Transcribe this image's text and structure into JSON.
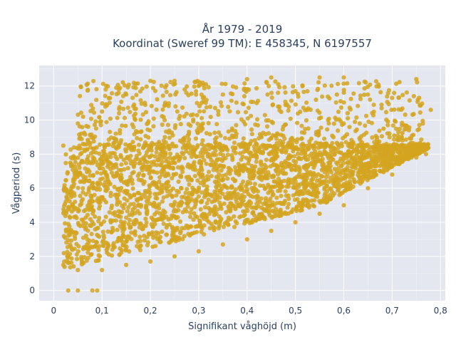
{
  "chart_data": {
    "type": "scatter",
    "title_line1": "År 1979 - 2019",
    "title_line2": "Koordinat (Sweref 99 TM): E 458345, N 6197557",
    "xlabel": "Signifikant våghöjd (m)",
    "ylabel": "Vågperiod (s)",
    "xlim": [
      -0.03,
      0.81
    ],
    "ylim": [
      -0.6,
      13.2
    ],
    "x_ticks": [
      0,
      0.1,
      0.2,
      0.3,
      0.4,
      0.5,
      0.6,
      0.7,
      0.8
    ],
    "x_tick_labels": [
      "0",
      "0,1",
      "0,2",
      "0,3",
      "0,4",
      "0,5",
      "0,6",
      "0,7",
      "0,8"
    ],
    "y_ticks": [
      0,
      2,
      4,
      6,
      8,
      10,
      12
    ],
    "y_tick_labels": [
      "0",
      "2",
      "4",
      "6",
      "8",
      "10",
      "12"
    ],
    "grid": true,
    "marker_color": "#D4A420",
    "plot_bg": "#E5E7F0",
    "description_points_approx": [
      {
        "x": 0.03,
        "y": 0.0
      },
      {
        "x": 0.05,
        "y": 0.0
      },
      {
        "x": 0.08,
        "y": 0.0
      },
      {
        "x": 0.09,
        "y": 0.0
      },
      {
        "x": 0.02,
        "y": 1.5
      },
      {
        "x": 0.02,
        "y": 8.5
      },
      {
        "x": 0.05,
        "y": 1.2
      },
      {
        "x": 0.05,
        "y": 9.8
      },
      {
        "x": 0.1,
        "y": 1.2
      },
      {
        "x": 0.1,
        "y": 10.5
      },
      {
        "x": 0.15,
        "y": 1.5
      },
      {
        "x": 0.15,
        "y": 11.5
      },
      {
        "x": 0.2,
        "y": 1.7
      },
      {
        "x": 0.2,
        "y": 12.3
      },
      {
        "x": 0.25,
        "y": 2.0
      },
      {
        "x": 0.25,
        "y": 12.3
      },
      {
        "x": 0.3,
        "y": 2.3
      },
      {
        "x": 0.3,
        "y": 12.0
      },
      {
        "x": 0.35,
        "y": 2.7
      },
      {
        "x": 0.35,
        "y": 11.5
      },
      {
        "x": 0.4,
        "y": 3.0
      },
      {
        "x": 0.4,
        "y": 12.4
      },
      {
        "x": 0.45,
        "y": 3.5
      },
      {
        "x": 0.45,
        "y": 12.5
      },
      {
        "x": 0.5,
        "y": 4.0
      },
      {
        "x": 0.5,
        "y": 11.7
      },
      {
        "x": 0.55,
        "y": 4.5
      },
      {
        "x": 0.55,
        "y": 12.5
      },
      {
        "x": 0.6,
        "y": 5.0
      },
      {
        "x": 0.6,
        "y": 12.5
      },
      {
        "x": 0.65,
        "y": 6.0
      },
      {
        "x": 0.65,
        "y": 11.5
      },
      {
        "x": 0.7,
        "y": 6.8
      },
      {
        "x": 0.7,
        "y": 11.3
      },
      {
        "x": 0.75,
        "y": 7.8
      },
      {
        "x": 0.75,
        "y": 12.4
      },
      {
        "x": 0.77,
        "y": 8.0
      },
      {
        "x": 0.78,
        "y": 10.6
      }
    ]
  }
}
